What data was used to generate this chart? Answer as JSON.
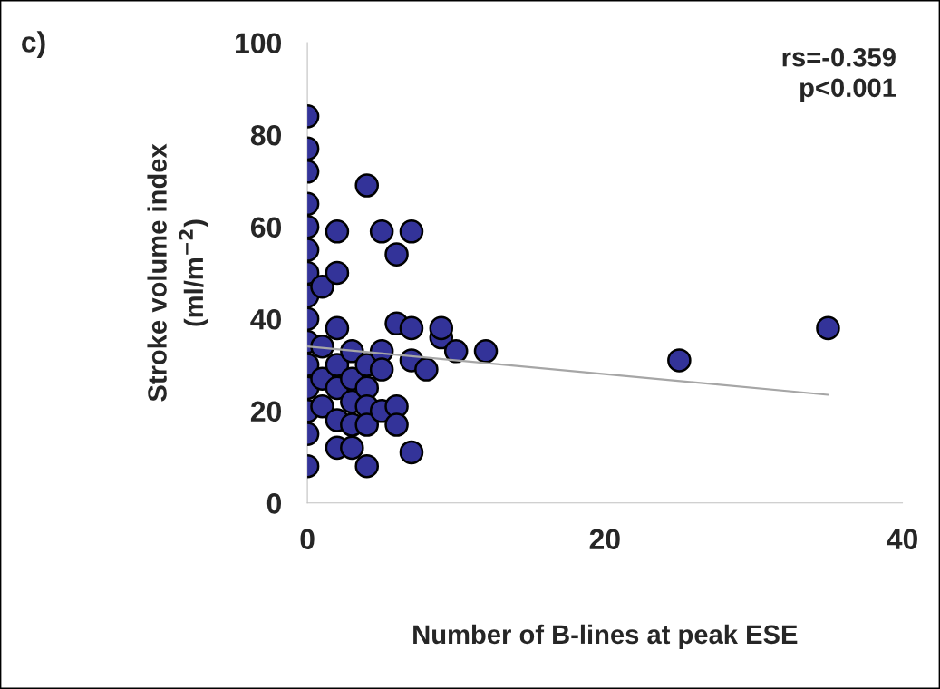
{
  "chart_data": {
    "type": "scatter",
    "xlabel": "Number of B-lines at peak ESE",
    "ylabel": "Stroke volume index\n(ml/m$^{−2}$)",
    "xlim": [
      0,
      40
    ],
    "ylim": [
      0,
      100
    ],
    "xticks": [
      0,
      20,
      40
    ],
    "yticks": [
      0,
      20,
      40,
      60,
      80,
      100
    ],
    "grid": false,
    "annotations": [
      "c)",
      "rs=-0.359\np<0.001"
    ],
    "series": [
      {
        "color": "#333399",
        "marker": "circle",
        "x": [
          0,
          0,
          0,
          0,
          0,
          0,
          0,
          0,
          0,
          0,
          0,
          0,
          0,
          0,
          0,
          1,
          1,
          1,
          1,
          2,
          2,
          2,
          2,
          2,
          2,
          2,
          3,
          3,
          3,
          3,
          3,
          4,
          4,
          4,
          4,
          4,
          4,
          5,
          5,
          5,
          5,
          6,
          6,
          6,
          6,
          7,
          7,
          7,
          7,
          8,
          9,
          9,
          10,
          12,
          25,
          35
        ],
        "values": [
          84,
          77,
          72,
          65,
          60,
          55,
          50,
          45,
          40,
          35,
          30,
          25,
          20,
          15,
          8,
          47,
          34,
          27,
          21,
          59,
          50,
          38,
          30,
          25,
          12,
          18,
          33,
          27,
          22,
          17,
          12,
          69,
          30,
          25,
          21,
          17,
          8,
          59,
          33,
          29,
          20,
          54,
          39,
          21,
          17,
          59,
          38,
          31,
          11,
          29,
          36,
          38,
          33,
          33,
          31,
          38
        ]
      },
      {
        "type": "line",
        "color": "#a6a6a6",
        "x": [
          0,
          35
        ],
        "values": [
          34,
          23.5
        ]
      }
    ]
  }
}
